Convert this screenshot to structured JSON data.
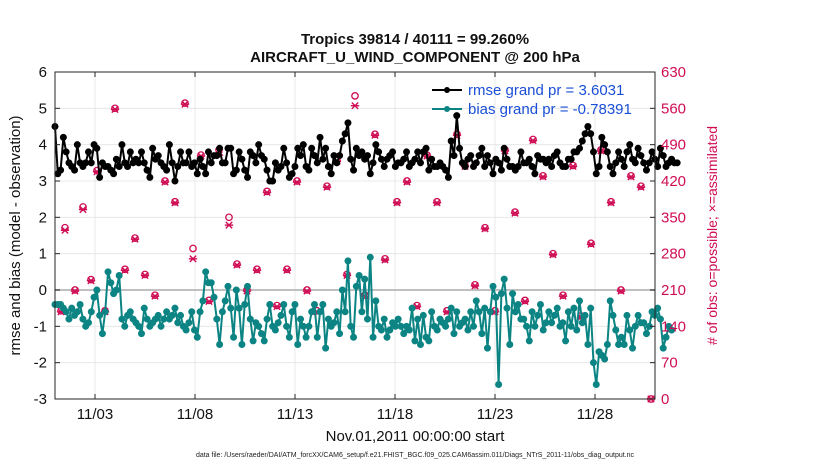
{
  "chart_data": {
    "type": "line",
    "title": "Tropics 39814 / 40111 = 99.260%",
    "subtitle": "AIRCRAFT_U_WIND_COMPONENT @ 200 hPa",
    "xlabel": "Nov.01,2011 00:00:00 start",
    "ylabel_left": "rmse and bias (model - observation)",
    "ylabel_right": "# of obs: o=possible; ×=assimilated",
    "footer": "data file: /Users/raeder/DAI/ATM_forcXX/CAM6_setup/f.e21.FHIST_BGC.f09_025.CAM6assim.011/Diags_NTrS_2011-11/obs_diag_output.nc",
    "xlim": [
      1,
      31
    ],
    "ylim_left": [
      -3,
      6
    ],
    "ylim_right": [
      0,
      630
    ],
    "xtick_values": [
      3,
      8,
      13,
      18,
      23,
      28
    ],
    "xticks": [
      "11/03",
      "11/08",
      "11/13",
      "11/18",
      "11/23",
      "11/28"
    ],
    "yticks_left": [
      "-3",
      "-2",
      "-1",
      "0",
      "1",
      "2",
      "3",
      "4",
      "5",
      "6"
    ],
    "yticks_right": [
      "0",
      "70",
      "140",
      "210",
      "280",
      "350",
      "420",
      "490",
      "560",
      "630"
    ],
    "grid": true,
    "legend_position": "top-right",
    "colors": {
      "rmse": "#000000",
      "bias": "#0c8484",
      "obs": "#cf0d54",
      "zero": "#c0c0c0"
    },
    "series": [
      {
        "name": "rmse grand pr = 3.6031",
        "values": [
          4.5,
          3.2,
          3.3,
          4.2,
          3.8,
          3.5,
          3.4,
          3.3,
          4.0,
          3.5,
          3.4,
          3.5,
          3.8,
          3.5,
          4.0,
          3.9,
          3.1,
          3.5,
          3.4,
          3.4,
          3.3,
          3.2,
          3.6,
          3.4,
          4.0,
          3.5,
          3.4,
          3.8,
          3.5,
          3.6,
          3.5,
          3.8,
          3.5,
          3.3,
          3.1,
          3.9,
          3.6,
          3.7,
          3.5,
          3.4,
          3.3,
          4.0,
          3.5,
          3.0,
          3.4,
          3.8,
          3.5,
          3.5,
          3.8,
          3.4,
          3.5,
          3.2,
          3.6,
          3.4,
          3.2,
          3.8,
          3.5,
          3.7,
          3.7,
          3.9,
          3.5,
          3.5,
          3.9,
          3.9,
          3.2,
          3.3,
          3.8,
          3.6,
          3.3,
          3.1,
          3.8,
          3.7,
          3.5,
          4.0,
          3.7,
          3.6,
          3.3,
          3.0,
          3.0,
          3.5,
          3.3,
          3.4,
          3.9,
          3.5,
          3.1,
          3.2,
          3.4,
          3.9,
          3.7,
          4.0,
          3.4,
          3.3,
          3.9,
          3.7,
          3.5,
          4.2,
          3.6,
          3.9,
          3.4,
          3.2,
          3.7,
          3.5,
          3.7,
          4.1,
          4.3,
          4.6,
          3.6,
          3.3,
          3.9,
          3.7,
          3.8,
          3.6,
          3.7,
          3.2,
          3.5,
          4.0,
          3.8,
          3.6,
          3.4,
          3.6,
          3.7,
          3.8,
          3.4,
          3.5,
          3.5,
          3.6,
          3.8,
          3.4,
          3.5,
          3.6,
          3.8,
          3.5,
          3.8,
          3.9,
          3.3,
          3.6,
          3.4,
          3.4,
          3.5,
          3.4,
          3.3,
          3.1,
          4.1,
          3.7,
          4.8,
          3.9,
          3.5,
          3.4,
          3.6,
          3.7,
          3.4,
          3.5,
          3.7,
          3.9,
          3.4,
          3.7,
          3.5,
          3.2,
          3.6,
          3.5,
          3.3,
          3.9,
          3.6,
          3.4,
          3.4,
          3.3,
          3.4,
          3.8,
          3.5,
          3.5,
          3.6,
          3.4,
          3.2,
          3.7,
          3.6,
          3.6,
          3.5,
          3.6,
          3.4,
          3.7,
          3.8,
          3.5,
          3.4,
          3.4,
          3.6,
          3.6,
          3.8,
          3.8,
          3.9,
          4.1,
          4.3,
          4.5,
          4.3,
          3.8,
          3.2,
          3.4,
          4.2,
          4.0,
          3.8,
          3.4,
          3.2,
          3.5,
          3.8,
          3.6,
          3.4,
          3.8,
          4.0,
          3.6,
          3.5,
          3.9,
          3.7,
          3.5,
          3.3,
          3.5,
          3.8,
          3.6,
          3.4,
          3.9,
          3.7,
          3.4,
          3.5,
          3.6,
          3.5,
          3.5
        ],
        "x_start": 1.0,
        "x_step": 0.1395
      },
      {
        "name": "bias grand pr = -0.78391",
        "values": [
          -0.4,
          -0.4,
          -0.4,
          -0.5,
          -0.6,
          -0.8,
          -0.5,
          -0.7,
          -0.6,
          -0.4,
          -0.8,
          -1.0,
          -0.9,
          -0.6,
          -0.2,
          0.0,
          -0.7,
          -1.2,
          -0.6,
          0.5,
          0.2,
          -0.1,
          0.0,
          0.4,
          -0.8,
          -1.0,
          -0.7,
          -0.6,
          -0.8,
          -0.9,
          -1.0,
          -1.2,
          -0.5,
          -0.8,
          -1.0,
          -0.9,
          -0.8,
          -0.7,
          -1.0,
          -0.8,
          -0.6,
          -0.8,
          -0.7,
          -0.5,
          -0.9,
          -0.7,
          -1.0,
          -1.1,
          -0.9,
          -0.6,
          -1.1,
          -1.3,
          -0.6,
          -0.3,
          0.5,
          0.2,
          0.2,
          -0.2,
          -0.8,
          -1.5,
          -0.6,
          -0.3,
          0.1,
          -0.5,
          -1.3,
          0.0,
          -0.5,
          -1.5,
          -0.4,
          0.1,
          -0.8,
          -1.4,
          -0.9,
          -1.0,
          -1.2,
          -1.4,
          -0.8,
          -0.4,
          -1.0,
          -1.1,
          -0.9,
          -0.7,
          -0.4,
          -1.0,
          -1.3,
          -0.6,
          -0.4,
          -1.5,
          -0.8,
          -1.0,
          -1.3,
          -1.0,
          -0.6,
          -0.4,
          -1.3,
          -0.6,
          -0.4,
          -1.6,
          -0.8,
          -1.0,
          -0.9,
          -0.6,
          -1.2,
          0.0,
          -0.6,
          0.8,
          -1.0,
          -1.3,
          0.1,
          0.4,
          -0.6,
          0.3,
          -0.8,
          0.9,
          -1.3,
          -0.3,
          -1.0,
          -1.1,
          -0.8,
          -1.3,
          -1.1,
          -0.9,
          -1.0,
          -0.8,
          -1.0,
          -1.2,
          -1.0,
          -1.1,
          -0.5,
          -1.4,
          -0.8,
          -1.5,
          -0.7,
          -1.3,
          -1.4,
          -0.6,
          -1.0,
          -1.1,
          -0.8,
          -0.9,
          -1.0,
          -0.8,
          -0.5,
          -1.2,
          -0.6,
          -1.0,
          -0.9,
          -0.8,
          -1.1,
          -0.6,
          -1.0,
          -0.3,
          -0.6,
          -1.2,
          -0.5,
          -1.6,
          -0.6,
          0.1,
          -0.2,
          -2.6,
          -0.1,
          0.3,
          -0.5,
          -1.5,
          -0.1,
          -0.6,
          -0.4,
          -0.8,
          -0.8,
          -1.0,
          -1.4,
          -0.6,
          -1.0,
          -0.7,
          -0.4,
          -1.1,
          -0.9,
          -0.6,
          -0.9,
          -0.7,
          -0.5,
          -1.0,
          -0.9,
          -1.4,
          -0.6,
          -1.0,
          -0.5,
          -1.1,
          -0.3,
          -0.9,
          -0.7,
          -1.5,
          -0.5,
          -2.0,
          -2.6,
          -1.7,
          -1.8,
          -1.9,
          -1.5,
          -0.3,
          -0.7,
          -1.1,
          -1.5,
          -1.3,
          -1.5,
          -0.7,
          -1.1,
          -1.6,
          -1.0,
          -0.7,
          -0.9,
          -0.9,
          -1.2,
          -1.0,
          -0.6,
          -0.7,
          -0.5,
          -0.8,
          -1.6,
          -1.3,
          -1.0,
          -1.1
        ],
        "x_start": 1.0,
        "x_step": 0.1395
      }
    ],
    "obs_possible": [
      {
        "x": 1.3,
        "y": 170
      },
      {
        "x": 1.5,
        "y": 330
      },
      {
        "x": 2.0,
        "y": 210
      },
      {
        "x": 2.4,
        "y": 370
      },
      {
        "x": 2.8,
        "y": 230
      },
      {
        "x": 3.1,
        "y": 440
      },
      {
        "x": 3.5,
        "y": 170
      },
      {
        "x": 4.0,
        "y": 560
      },
      {
        "x": 4.5,
        "y": 250
      },
      {
        "x": 5.0,
        "y": 310
      },
      {
        "x": 5.5,
        "y": 240
      },
      {
        "x": 6.0,
        "y": 200
      },
      {
        "x": 6.5,
        "y": 420
      },
      {
        "x": 7.0,
        "y": 380
      },
      {
        "x": 7.5,
        "y": 570
      },
      {
        "x": 7.9,
        "y": 290
      },
      {
        "x": 8.3,
        "y": 470
      },
      {
        "x": 8.7,
        "y": 190
      },
      {
        "x": 9.2,
        "y": 480
      },
      {
        "x": 9.7,
        "y": 350
      },
      {
        "x": 10.1,
        "y": 260
      },
      {
        "x": 10.6,
        "y": 210
      },
      {
        "x": 11.1,
        "y": 250
      },
      {
        "x": 11.6,
        "y": 400
      },
      {
        "x": 12.1,
        "y": 180
      },
      {
        "x": 12.6,
        "y": 250
      },
      {
        "x": 13.1,
        "y": 420
      },
      {
        "x": 13.6,
        "y": 210
      },
      {
        "x": 14.1,
        "y": 170
      },
      {
        "x": 14.6,
        "y": 410
      },
      {
        "x": 15.1,
        "y": 460
      },
      {
        "x": 15.6,
        "y": 240
      },
      {
        "x": 16.0,
        "y": 584
      },
      {
        "x": 16.5,
        "y": 200
      },
      {
        "x": 17.0,
        "y": 510
      },
      {
        "x": 17.5,
        "y": 270
      },
      {
        "x": 18.1,
        "y": 380
      },
      {
        "x": 18.6,
        "y": 420
      },
      {
        "x": 19.1,
        "y": 180
      },
      {
        "x": 19.6,
        "y": 470
      },
      {
        "x": 20.1,
        "y": 380
      },
      {
        "x": 20.6,
        "y": 170
      },
      {
        "x": 21.1,
        "y": 510
      },
      {
        "x": 21.5,
        "y": 450
      },
      {
        "x": 22.0,
        "y": 220
      },
      {
        "x": 22.5,
        "y": 330
      },
      {
        "x": 23.0,
        "y": 170
      },
      {
        "x": 23.5,
        "y": 480
      },
      {
        "x": 24.0,
        "y": 360
      },
      {
        "x": 24.5,
        "y": 190
      },
      {
        "x": 24.9,
        "y": 500
      },
      {
        "x": 25.4,
        "y": 430
      },
      {
        "x": 25.9,
        "y": 280
      },
      {
        "x": 26.4,
        "y": 200
      },
      {
        "x": 26.9,
        "y": 450
      },
      {
        "x": 27.3,
        "y": 160
      },
      {
        "x": 27.8,
        "y": 300
      },
      {
        "x": 28.3,
        "y": 480
      },
      {
        "x": 28.8,
        "y": 380
      },
      {
        "x": 29.3,
        "y": 210
      },
      {
        "x": 29.8,
        "y": 430
      },
      {
        "x": 30.3,
        "y": 410
      },
      {
        "x": 30.8,
        "y": 0
      }
    ],
    "obs_assimilated": [
      {
        "x": 1.3,
        "y": 168
      },
      {
        "x": 1.5,
        "y": 325
      },
      {
        "x": 2.0,
        "y": 208
      },
      {
        "x": 2.4,
        "y": 365
      },
      {
        "x": 2.8,
        "y": 228
      },
      {
        "x": 3.1,
        "y": 438
      },
      {
        "x": 3.5,
        "y": 168
      },
      {
        "x": 4.0,
        "y": 558
      },
      {
        "x": 4.5,
        "y": 248
      },
      {
        "x": 5.0,
        "y": 308
      },
      {
        "x": 5.5,
        "y": 238
      },
      {
        "x": 6.0,
        "y": 198
      },
      {
        "x": 6.5,
        "y": 418
      },
      {
        "x": 7.0,
        "y": 378
      },
      {
        "x": 7.5,
        "y": 568
      },
      {
        "x": 7.9,
        "y": 270
      },
      {
        "x": 8.3,
        "y": 468
      },
      {
        "x": 8.7,
        "y": 188
      },
      {
        "x": 9.2,
        "y": 470
      },
      {
        "x": 9.7,
        "y": 335
      },
      {
        "x": 10.1,
        "y": 258
      },
      {
        "x": 10.6,
        "y": 208
      },
      {
        "x": 11.1,
        "y": 248
      },
      {
        "x": 11.6,
        "y": 398
      },
      {
        "x": 12.1,
        "y": 178
      },
      {
        "x": 12.6,
        "y": 248
      },
      {
        "x": 13.1,
        "y": 418
      },
      {
        "x": 13.6,
        "y": 208
      },
      {
        "x": 14.1,
        "y": 168
      },
      {
        "x": 14.6,
        "y": 408
      },
      {
        "x": 15.1,
        "y": 458
      },
      {
        "x": 15.6,
        "y": 238
      },
      {
        "x": 16.0,
        "y": 565
      },
      {
        "x": 16.5,
        "y": 198
      },
      {
        "x": 17.0,
        "y": 508
      },
      {
        "x": 17.5,
        "y": 268
      },
      {
        "x": 18.1,
        "y": 378
      },
      {
        "x": 18.6,
        "y": 418
      },
      {
        "x": 19.1,
        "y": 178
      },
      {
        "x": 19.6,
        "y": 468
      },
      {
        "x": 20.1,
        "y": 378
      },
      {
        "x": 20.6,
        "y": 168
      },
      {
        "x": 21.1,
        "y": 508
      },
      {
        "x": 21.5,
        "y": 448
      },
      {
        "x": 22.0,
        "y": 218
      },
      {
        "x": 22.5,
        "y": 328
      },
      {
        "x": 23.0,
        "y": 168
      },
      {
        "x": 23.5,
        "y": 478
      },
      {
        "x": 24.0,
        "y": 358
      },
      {
        "x": 24.5,
        "y": 188
      },
      {
        "x": 24.9,
        "y": 498
      },
      {
        "x": 25.4,
        "y": 428
      },
      {
        "x": 25.9,
        "y": 278
      },
      {
        "x": 26.4,
        "y": 198
      },
      {
        "x": 26.9,
        "y": 448
      },
      {
        "x": 27.3,
        "y": 158
      },
      {
        "x": 27.8,
        "y": 298
      },
      {
        "x": 28.3,
        "y": 478
      },
      {
        "x": 28.8,
        "y": 378
      },
      {
        "x": 29.3,
        "y": 208
      },
      {
        "x": 29.8,
        "y": 428
      },
      {
        "x": 30.3,
        "y": 408
      },
      {
        "x": 30.8,
        "y": 0
      }
    ]
  }
}
